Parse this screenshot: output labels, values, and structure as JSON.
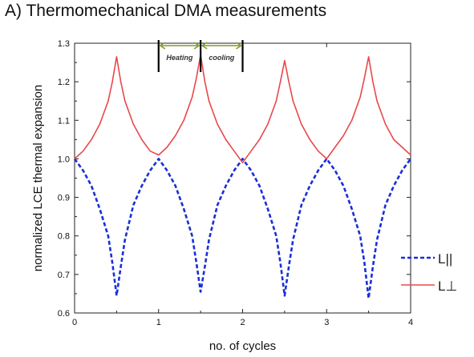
{
  "title": "A) Thermomechanical DMA measurements",
  "chart_data": {
    "type": "line",
    "xlabel": "no. of cycles",
    "ylabel": "normalized LCE thermal expansion",
    "xlim": [
      0,
      4
    ],
    "ylim": [
      0.6,
      1.3
    ],
    "xticks": [
      "0",
      "1",
      "2",
      "3",
      "4"
    ],
    "yticks": [
      "0.6",
      "0.7",
      "0.8",
      "0.9",
      "1.0",
      "1.1",
      "1.2",
      "1.3"
    ],
    "grid": false,
    "legend_position": "right",
    "series": [
      {
        "name": "L||",
        "color": "#1a2fd6",
        "style": "dashed",
        "x": [
          0,
          0.1,
          0.2,
          0.3,
          0.4,
          0.45,
          0.5,
          0.55,
          0.6,
          0.7,
          0.8,
          0.9,
          1.0,
          1.1,
          1.2,
          1.3,
          1.4,
          1.45,
          1.5,
          1.55,
          1.6,
          1.7,
          1.8,
          1.9,
          2.0,
          2.1,
          2.2,
          2.3,
          2.4,
          2.45,
          2.5,
          2.55,
          2.6,
          2.7,
          2.8,
          2.9,
          3.0,
          3.1,
          3.2,
          3.3,
          3.4,
          3.45,
          3.5,
          3.55,
          3.6,
          3.7,
          3.8,
          3.9,
          4.0
        ],
        "y": [
          1.0,
          0.97,
          0.93,
          0.87,
          0.8,
          0.73,
          0.645,
          0.72,
          0.79,
          0.88,
          0.93,
          0.97,
          1.0,
          0.97,
          0.93,
          0.87,
          0.8,
          0.73,
          0.655,
          0.72,
          0.79,
          0.88,
          0.93,
          0.97,
          1.0,
          0.97,
          0.93,
          0.87,
          0.8,
          0.73,
          0.645,
          0.72,
          0.79,
          0.88,
          0.93,
          0.97,
          1.0,
          0.97,
          0.93,
          0.87,
          0.8,
          0.73,
          0.638,
          0.72,
          0.79,
          0.88,
          0.93,
          0.97,
          1.0
        ]
      },
      {
        "name": "L⊥",
        "color": "#e8484c",
        "style": "solid",
        "x": [
          0,
          0.1,
          0.2,
          0.3,
          0.4,
          0.45,
          0.5,
          0.55,
          0.6,
          0.7,
          0.8,
          0.9,
          1.0,
          1.1,
          1.2,
          1.3,
          1.4,
          1.45,
          1.5,
          1.55,
          1.6,
          1.7,
          1.8,
          1.9,
          2.0,
          2.1,
          2.2,
          2.3,
          2.4,
          2.45,
          2.5,
          2.55,
          2.6,
          2.7,
          2.8,
          2.9,
          3.0,
          3.1,
          3.2,
          3.3,
          3.4,
          3.45,
          3.5,
          3.55,
          3.6,
          3.7,
          3.8,
          3.9,
          4.0
        ],
        "y": [
          1.0,
          1.02,
          1.05,
          1.09,
          1.15,
          1.2,
          1.265,
          1.2,
          1.15,
          1.09,
          1.05,
          1.02,
          1.01,
          1.03,
          1.06,
          1.1,
          1.16,
          1.21,
          1.27,
          1.2,
          1.15,
          1.09,
          1.05,
          1.02,
          0.99,
          1.02,
          1.05,
          1.09,
          1.15,
          1.2,
          1.255,
          1.2,
          1.15,
          1.09,
          1.05,
          1.02,
          1.0,
          1.03,
          1.06,
          1.1,
          1.16,
          1.21,
          1.265,
          1.2,
          1.15,
          1.09,
          1.05,
          1.03,
          1.01
        ]
      }
    ],
    "annotations": {
      "heating_label": "Heating",
      "cooling_label": "cooling",
      "markers_x": [
        1.0,
        1.5,
        2.0
      ],
      "arrow_color": "#7f9a2e"
    }
  }
}
